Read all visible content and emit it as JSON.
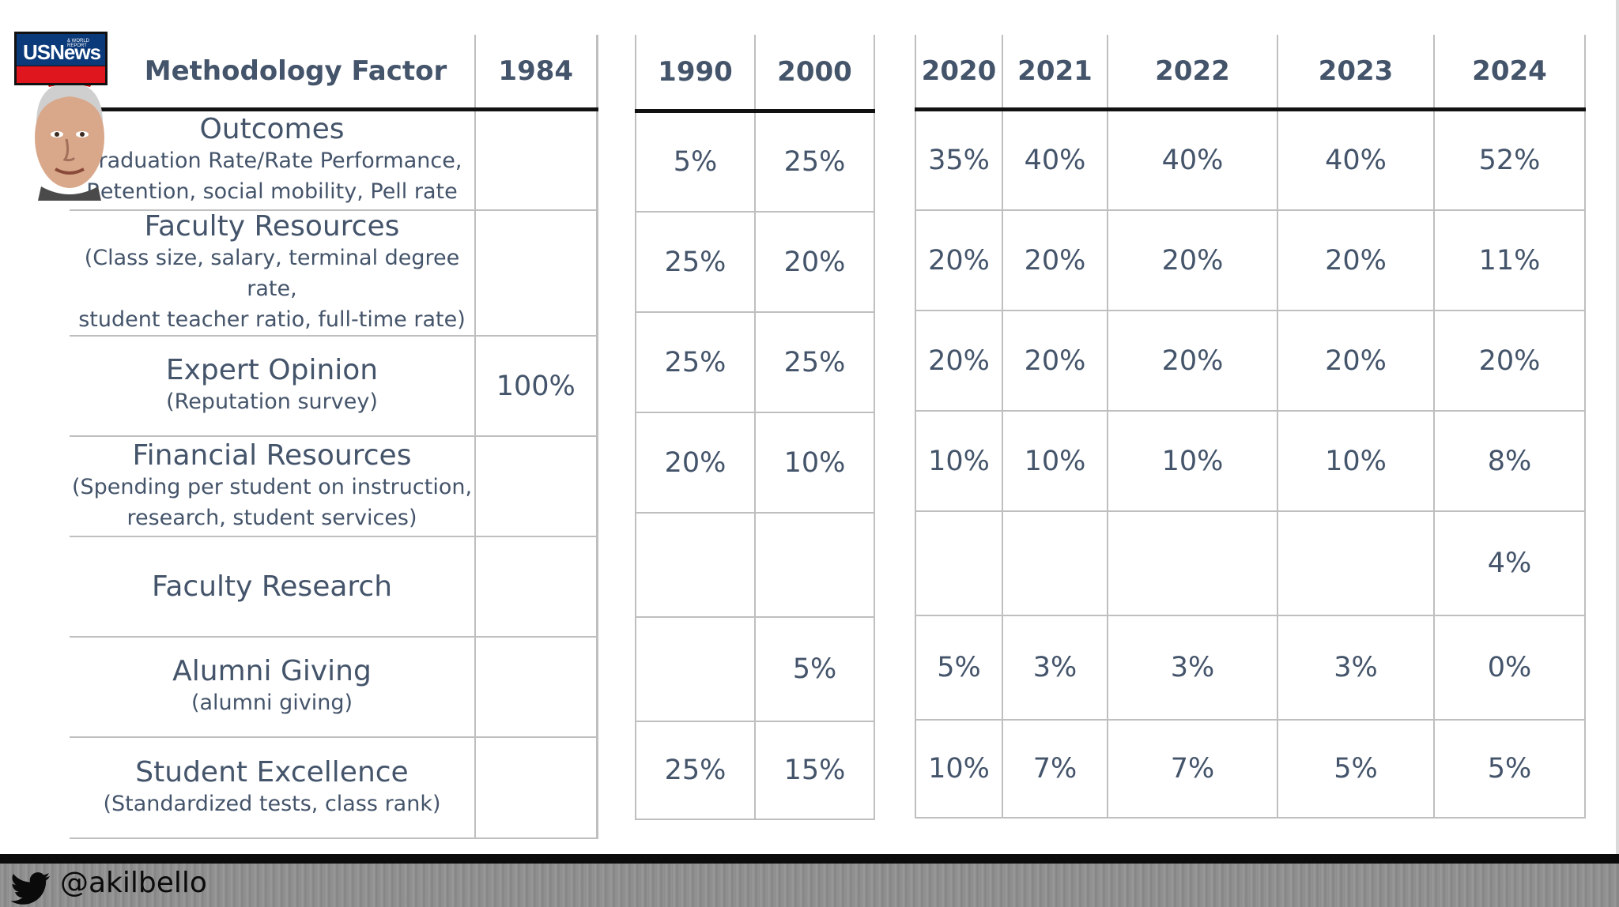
{
  "header": {
    "factor_label": "Methodology Factor",
    "years": {
      "y1984": "1984",
      "y1990": "1990",
      "y2000": "2000",
      "y2020": "2020",
      "y2021": "2021",
      "y2022": "2022",
      "y2023": "2023",
      "y2024": "2024"
    }
  },
  "logo": {
    "text": "USNews",
    "subtext": "& WORLD REPORT"
  },
  "rows": [
    {
      "name": "Outcomes",
      "desc1": "Graduation Rate/Rate Performance,",
      "desc2": "Retention, social mobility, Pell rate",
      "v1984": "",
      "v1990": "5%",
      "v2000": "25%",
      "v2020": "35%",
      "v2021": "40%",
      "v2022": "40%",
      "v2023": "40%",
      "v2024": "52%"
    },
    {
      "name": "Faculty Resources",
      "desc1": "(Class size, salary, terminal degree rate,",
      "desc2": "student teacher ratio, full-time rate)",
      "v1984": "",
      "v1990": "25%",
      "v2000": "20%",
      "v2020": "20%",
      "v2021": "20%",
      "v2022": "20%",
      "v2023": "20%",
      "v2024": "11%"
    },
    {
      "name": "Expert Opinion",
      "desc1": "(Reputation survey)",
      "desc2": "",
      "v1984": "100%",
      "v1990": "25%",
      "v2000": "25%",
      "v2020": "20%",
      "v2021": "20%",
      "v2022": "20%",
      "v2023": "20%",
      "v2024": "20%"
    },
    {
      "name": "Financial Resources",
      "desc1": "(Spending per student on instruction,",
      "desc2": "research, student services)",
      "v1984": "",
      "v1990": "20%",
      "v2000": "10%",
      "v2020": "10%",
      "v2021": "10%",
      "v2022": "10%",
      "v2023": "10%",
      "v2024": "8%"
    },
    {
      "name": "Faculty Research",
      "desc1": "",
      "desc2": "",
      "v1984": "",
      "v1990": "",
      "v2000": "",
      "v2020": "",
      "v2021": "",
      "v2022": "",
      "v2023": "",
      "v2024": "4%"
    },
    {
      "name": "Alumni Giving",
      "desc1": "(alumni giving)",
      "desc2": "",
      "v1984": "",
      "v1990": "",
      "v2000": "5%",
      "v2020": "5%",
      "v2021": "3%",
      "v2022": "3%",
      "v2023": "3%",
      "v2024": "0%"
    },
    {
      "name": "Student Excellence",
      "desc1": "(Standardized tests, class rank)",
      "desc2": "",
      "v1984": "",
      "v1990": "25%",
      "v2000": "15%",
      "v2020": "10%",
      "v2021": "7%",
      "v2022": "7%",
      "v2023": "5%",
      "v2024": "5%"
    }
  ],
  "footer": {
    "handle": "@akilbello",
    "icon": "twitter-bird-icon"
  },
  "colors": {
    "text": "#44546a",
    "grid": "#bfbfbf",
    "rule": "#111111",
    "logo_blue": "#0b3a7a",
    "logo_red": "#e0161e"
  }
}
